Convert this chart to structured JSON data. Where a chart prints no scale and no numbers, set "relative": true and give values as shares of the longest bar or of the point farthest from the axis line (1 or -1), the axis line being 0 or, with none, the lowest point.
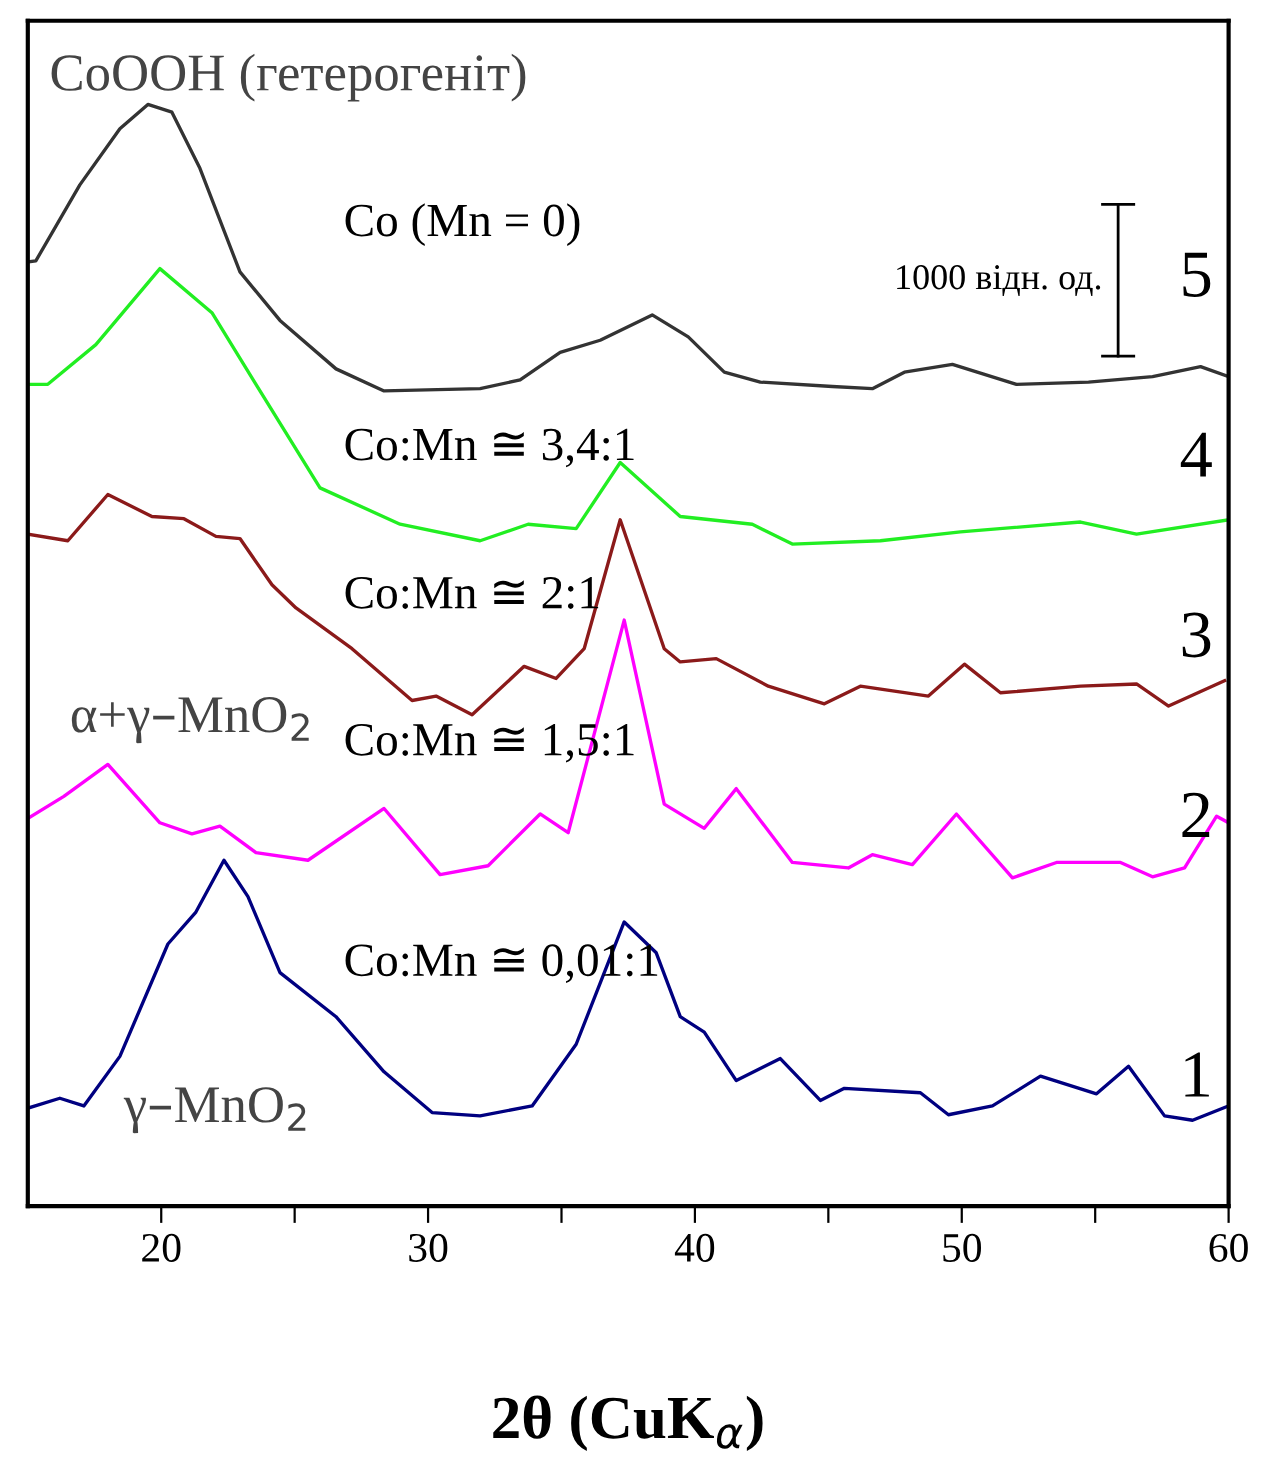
{
  "chart_data": {
    "type": "line",
    "relative": true,
    "xlabel": "2θ (CuK$_{α}$)",
    "xlim": [
      15,
      60
    ],
    "xticks": [
      20,
      {
        "value": 25,
        "label": null
      },
      30,
      {
        "value": 35,
        "label": null
      },
      40,
      {
        "value": 45,
        "label": null
      },
      50,
      {
        "value": 55,
        "label": null
      },
      60
    ],
    "tick_labels": "x",
    "grid": false,
    "legend": false,
    "marker": "none",
    "line_style": "solid",
    "series": [
      {
        "name": "Co:Mn ≅ 0,01:1",
        "color": "#000080",
        "x": [
          15,
          16.2,
          17.1,
          18.45,
          20.25,
          21.3,
          22.35,
          23.25,
          24.45,
          26.55,
          28.35,
          30.15,
          31.95,
          33.9,
          35.55,
          37.35,
          38.55,
          39.45,
          40.35,
          41.55,
          43.2,
          44.7,
          45.6,
          48.45,
          49.5,
          51.15,
          52.95,
          55.05,
          56.25,
          57.6,
          58.65,
          60
        ],
        "values": [
          0.089,
          0.098,
          0.091,
          0.136,
          0.238,
          0.267,
          0.314,
          0.281,
          0.212,
          0.172,
          0.122,
          0.085,
          0.082,
          0.091,
          0.147,
          0.258,
          0.23,
          0.172,
          0.158,
          0.114,
          0.134,
          0.096,
          0.107,
          0.103,
          0.083,
          0.091,
          0.118,
          0.102,
          0.127,
          0.082,
          0.078,
          0.091
        ]
      },
      {
        "name": "Co:Mn ≅ 1,5:1",
        "color": "#ff00ff",
        "x": [
          15,
          16.35,
          18.0,
          19.95,
          21.15,
          22.2,
          23.55,
          25.5,
          28.35,
          30.45,
          32.25,
          34.2,
          35.25,
          37.35,
          38.85,
          40.35,
          41.55,
          43.65,
          45.75,
          46.65,
          48.15,
          49.8,
          51.9,
          53.55,
          55.95,
          57.15,
          58.35,
          59.55,
          60
        ],
        "values": [
          0.352,
          0.372,
          0.401,
          0.348,
          0.338,
          0.345,
          0.321,
          0.314,
          0.361,
          0.301,
          0.309,
          0.356,
          0.339,
          0.532,
          0.365,
          0.343,
          0.379,
          0.312,
          0.307,
          0.319,
          0.31,
          0.356,
          0.298,
          0.312,
          0.312,
          0.299,
          0.307,
          0.354,
          0.348
        ]
      },
      {
        "name": "Co:Mn ≅ 2:1",
        "color": "#8b1a1a",
        "x": [
          15,
          16.5,
          18.0,
          19.65,
          20.85,
          22.05,
          22.95,
          24.15,
          25.05,
          27.15,
          29.4,
          30.3,
          31.65,
          33.6,
          34.8,
          35.85,
          37.2,
          38.85,
          39.45,
          40.8,
          42.75,
          44.85,
          46.2,
          48.75,
          50.1,
          51.45,
          54.45,
          56.55,
          57.75,
          59.85
        ],
        "values": [
          0.61,
          0.604,
          0.646,
          0.626,
          0.624,
          0.608,
          0.606,
          0.564,
          0.543,
          0.506,
          0.459,
          0.463,
          0.446,
          0.49,
          0.479,
          0.506,
          0.623,
          0.506,
          0.494,
          0.497,
          0.472,
          0.456,
          0.472,
          0.463,
          0.492,
          0.466,
          0.472,
          0.474,
          0.454,
          0.477
        ]
      },
      {
        "name": "Co:Mn ≅ 3,4:1",
        "color": "#22ee22",
        "x": [
          15,
          15.75,
          17.55,
          19.95,
          21.9,
          23.55,
          25.95,
          28.95,
          31.95,
          33.75,
          35.55,
          37.2,
          39.45,
          42.15,
          43.65,
          46.95,
          49.95,
          54.45,
          56.55,
          60
        ],
        "values": [
          0.746,
          0.746,
          0.782,
          0.851,
          0.811,
          0.746,
          0.652,
          0.619,
          0.604,
          0.619,
          0.615,
          0.675,
          0.626,
          0.619,
          0.601,
          0.604,
          0.612,
          0.621,
          0.61,
          0.623
        ]
      },
      {
        "name": "Co (Mn = 0)",
        "color": "#333333",
        "x": [
          15,
          15.3,
          16.95,
          18.45,
          19.5,
          20.4,
          21.45,
          22.95,
          24.45,
          26.55,
          28.35,
          31.95,
          33.45,
          34.95,
          36.45,
          38.4,
          39.75,
          41.1,
          42.45,
          45.15,
          46.65,
          47.85,
          49.65,
          52.05,
          54.75,
          57.15,
          58.95,
          60
        ],
        "values": [
          0.857,
          0.858,
          0.927,
          0.978,
          1.0,
          0.993,
          0.942,
          0.848,
          0.804,
          0.76,
          0.74,
          0.742,
          0.75,
          0.775,
          0.786,
          0.809,
          0.789,
          0.757,
          0.748,
          0.744,
          0.742,
          0.757,
          0.764,
          0.746,
          0.748,
          0.753,
          0.762,
          0.753
        ]
      }
    ],
    "annotations": [
      "CoOOH (гетерогеніт)",
      "α+γ–MnO$_{2}$",
      "γ–MnO$_{2}$",
      "5",
      "4",
      "3",
      "2",
      "1",
      "1000 відн. од."
    ]
  }
}
